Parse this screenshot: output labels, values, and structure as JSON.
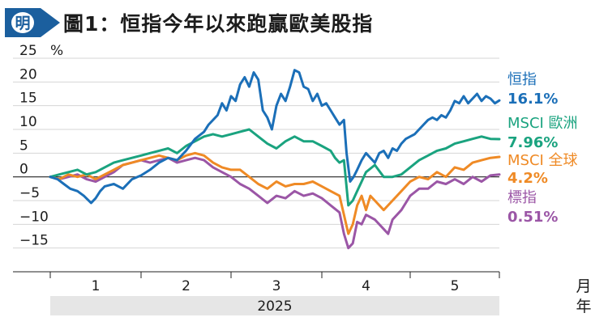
{
  "header": {
    "logo_text": "明",
    "title": "圖1：恒指今年以來跑贏歐美股指"
  },
  "chart_data": {
    "type": "line",
    "title": "圖1：恒指今年以來跑贏歐美股指",
    "y_unit": "%",
    "y_ticks": [
      "25",
      "20",
      "15",
      "10",
      "5",
      "0",
      "−5",
      "−10",
      "−15"
    ],
    "ylim": [
      -20,
      25
    ],
    "x_ticks": [
      "1",
      "2",
      "3",
      "4",
      "5"
    ],
    "x_unit_top": "月",
    "x_unit_bottom": "年",
    "year_label": "2025",
    "zero_line": true,
    "grid": true,
    "legend_position": "right",
    "series": [
      {
        "name": "恒指",
        "final_label": "16.1%",
        "color": "#1b6fb8",
        "points": [
          [
            0,
            0
          ],
          [
            0.08,
            -0.5
          ],
          [
            0.15,
            -1.5
          ],
          [
            0.22,
            -2.5
          ],
          [
            0.3,
            -3
          ],
          [
            0.37,
            -4
          ],
          [
            0.45,
            -5.5
          ],
          [
            0.5,
            -4.5
          ],
          [
            0.55,
            -3
          ],
          [
            0.6,
            -2
          ],
          [
            0.7,
            -1.5
          ],
          [
            0.8,
            -2.5
          ],
          [
            0.9,
            -0.5
          ],
          [
            1,
            0.3
          ],
          [
            1.1,
            1.5
          ],
          [
            1.2,
            3
          ],
          [
            1.3,
            4
          ],
          [
            1.4,
            3.5
          ],
          [
            1.5,
            5.5
          ],
          [
            1.6,
            8
          ],
          [
            1.7,
            9.5
          ],
          [
            1.75,
            11
          ],
          [
            1.85,
            13
          ],
          [
            1.9,
            15.5
          ],
          [
            1.95,
            14
          ],
          [
            2,
            17
          ],
          [
            2.05,
            16
          ],
          [
            2.1,
            19.5
          ],
          [
            2.15,
            21
          ],
          [
            2.2,
            19
          ],
          [
            2.25,
            22
          ],
          [
            2.3,
            20.5
          ],
          [
            2.35,
            14
          ],
          [
            2.4,
            12.5
          ],
          [
            2.45,
            10
          ],
          [
            2.5,
            15
          ],
          [
            2.55,
            17.5
          ],
          [
            2.6,
            16
          ],
          [
            2.65,
            19
          ],
          [
            2.7,
            22.5
          ],
          [
            2.75,
            22
          ],
          [
            2.8,
            19
          ],
          [
            2.85,
            18.5
          ],
          [
            2.9,
            16
          ],
          [
            2.95,
            17.5
          ],
          [
            3,
            15
          ],
          [
            3.05,
            15.5
          ],
          [
            3.1,
            14
          ],
          [
            3.15,
            12.5
          ],
          [
            3.2,
            11
          ],
          [
            3.25,
            12
          ],
          [
            3.28,
            5
          ],
          [
            3.32,
            -1
          ],
          [
            3.36,
            0
          ],
          [
            3.4,
            1.5
          ],
          [
            3.45,
            3.5
          ],
          [
            3.5,
            5
          ],
          [
            3.55,
            4
          ],
          [
            3.6,
            3
          ],
          [
            3.65,
            5
          ],
          [
            3.7,
            5.5
          ],
          [
            3.75,
            4
          ],
          [
            3.8,
            6
          ],
          [
            3.85,
            5.5
          ],
          [
            3.9,
            7
          ],
          [
            3.95,
            8
          ],
          [
            4,
            8.5
          ],
          [
            4.05,
            9
          ],
          [
            4.1,
            10
          ],
          [
            4.15,
            11
          ],
          [
            4.2,
            12
          ],
          [
            4.25,
            12.5
          ],
          [
            4.3,
            12
          ],
          [
            4.35,
            13
          ],
          [
            4.4,
            12.5
          ],
          [
            4.45,
            14
          ],
          [
            4.5,
            16
          ],
          [
            4.55,
            15.5
          ],
          [
            4.6,
            17
          ],
          [
            4.65,
            15.5
          ],
          [
            4.7,
            16.5
          ],
          [
            4.75,
            17.5
          ],
          [
            4.8,
            16
          ],
          [
            4.85,
            17
          ],
          [
            4.9,
            16.5
          ],
          [
            4.95,
            15.5
          ],
          [
            5,
            16.1
          ]
        ]
      },
      {
        "name": "MSCI 歐洲",
        "final_label": "7.96%",
        "color": "#1aa37f",
        "points": [
          [
            0,
            0
          ],
          [
            0.1,
            0.5
          ],
          [
            0.2,
            1
          ],
          [
            0.3,
            1.5
          ],
          [
            0.4,
            0.5
          ],
          [
            0.5,
            1
          ],
          [
            0.6,
            2
          ],
          [
            0.7,
            3
          ],
          [
            0.8,
            3.5
          ],
          [
            0.9,
            4
          ],
          [
            1,
            4.5
          ],
          [
            1.1,
            5
          ],
          [
            1.2,
            5.5
          ],
          [
            1.3,
            6
          ],
          [
            1.4,
            5
          ],
          [
            1.5,
            6.5
          ],
          [
            1.6,
            7.5
          ],
          [
            1.7,
            8.5
          ],
          [
            1.8,
            9
          ],
          [
            1.9,
            8.5
          ],
          [
            2,
            9
          ],
          [
            2.1,
            9.5
          ],
          [
            2.2,
            10
          ],
          [
            2.3,
            8.5
          ],
          [
            2.4,
            7
          ],
          [
            2.5,
            6
          ],
          [
            2.6,
            7.5
          ],
          [
            2.7,
            8.5
          ],
          [
            2.8,
            7.5
          ],
          [
            2.9,
            7.5
          ],
          [
            3,
            6.5
          ],
          [
            3.1,
            5.5
          ],
          [
            3.15,
            4
          ],
          [
            3.2,
            3
          ],
          [
            3.25,
            3.5
          ],
          [
            3.3,
            -6
          ],
          [
            3.35,
            -5
          ],
          [
            3.4,
            -3
          ],
          [
            3.45,
            -1
          ],
          [
            3.5,
            1
          ],
          [
            3.6,
            2.5
          ],
          [
            3.7,
            0
          ],
          [
            3.8,
            0
          ],
          [
            3.9,
            0.5
          ],
          [
            4,
            2
          ],
          [
            4.1,
            3.5
          ],
          [
            4.2,
            4.5
          ],
          [
            4.3,
            5.5
          ],
          [
            4.4,
            6
          ],
          [
            4.5,
            7
          ],
          [
            4.6,
            7.5
          ],
          [
            4.7,
            8
          ],
          [
            4.8,
            8.5
          ],
          [
            4.9,
            8
          ],
          [
            5,
            7.96
          ]
        ]
      },
      {
        "name": "MSCI 全球",
        "final_label": "4.2%",
        "color": "#ef8a25",
        "points": [
          [
            0,
            0
          ],
          [
            0.1,
            -0.5
          ],
          [
            0.2,
            0.5
          ],
          [
            0.3,
            0
          ],
          [
            0.4,
            0.5
          ],
          [
            0.5,
            -0.5
          ],
          [
            0.6,
            0.5
          ],
          [
            0.7,
            1.5
          ],
          [
            0.8,
            2.5
          ],
          [
            0.9,
            3
          ],
          [
            1,
            3.5
          ],
          [
            1.1,
            4
          ],
          [
            1.2,
            4.5
          ],
          [
            1.3,
            4
          ],
          [
            1.4,
            3.5
          ],
          [
            1.5,
            4.5
          ],
          [
            1.6,
            5
          ],
          [
            1.7,
            4.5
          ],
          [
            1.8,
            3
          ],
          [
            1.9,
            2
          ],
          [
            2,
            1.5
          ],
          [
            2.1,
            1.5
          ],
          [
            2.2,
            0
          ],
          [
            2.3,
            -1.5
          ],
          [
            2.4,
            -2.5
          ],
          [
            2.5,
            -1
          ],
          [
            2.6,
            -2
          ],
          [
            2.7,
            -1.5
          ],
          [
            2.8,
            -1.5
          ],
          [
            2.9,
            -1
          ],
          [
            3,
            -2
          ],
          [
            3.1,
            -3
          ],
          [
            3.2,
            -4
          ],
          [
            3.25,
            -8
          ],
          [
            3.3,
            -12
          ],
          [
            3.35,
            -10
          ],
          [
            3.4,
            -6
          ],
          [
            3.45,
            -4
          ],
          [
            3.5,
            -7
          ],
          [
            3.55,
            -4
          ],
          [
            3.6,
            -5
          ],
          [
            3.7,
            -7
          ],
          [
            3.8,
            -5
          ],
          [
            3.9,
            -3
          ],
          [
            4,
            -1
          ],
          [
            4.1,
            0
          ],
          [
            4.2,
            -0.5
          ],
          [
            4.3,
            1
          ],
          [
            4.4,
            0
          ],
          [
            4.5,
            2
          ],
          [
            4.6,
            1.5
          ],
          [
            4.7,
            3
          ],
          [
            4.8,
            3.5
          ],
          [
            4.9,
            4
          ],
          [
            5,
            4.2
          ]
        ]
      },
      {
        "name": "標指",
        "final_label": "0.51%",
        "color": "#9b56a6",
        "points": [
          [
            0,
            0
          ],
          [
            0.1,
            -0.5
          ],
          [
            0.2,
            0
          ],
          [
            0.3,
            0.5
          ],
          [
            0.4,
            -0.5
          ],
          [
            0.5,
            -1
          ],
          [
            0.6,
            0
          ],
          [
            0.7,
            1
          ],
          [
            0.8,
            2.5
          ],
          [
            0.9,
            3
          ],
          [
            1,
            3.5
          ],
          [
            1.1,
            3
          ],
          [
            1.2,
            3.5
          ],
          [
            1.3,
            4
          ],
          [
            1.4,
            3
          ],
          [
            1.5,
            3.5
          ],
          [
            1.6,
            4
          ],
          [
            1.7,
            3.5
          ],
          [
            1.8,
            2
          ],
          [
            1.9,
            1
          ],
          [
            2,
            0
          ],
          [
            2.1,
            -1.5
          ],
          [
            2.2,
            -2.5
          ],
          [
            2.3,
            -4
          ],
          [
            2.4,
            -5.5
          ],
          [
            2.5,
            -4
          ],
          [
            2.6,
            -4.5
          ],
          [
            2.7,
            -3
          ],
          [
            2.8,
            -4
          ],
          [
            2.9,
            -3.5
          ],
          [
            3,
            -4.5
          ],
          [
            3.1,
            -6
          ],
          [
            3.2,
            -7.5
          ],
          [
            3.25,
            -12
          ],
          [
            3.3,
            -15
          ],
          [
            3.35,
            -14
          ],
          [
            3.4,
            -9.5
          ],
          [
            3.45,
            -10
          ],
          [
            3.5,
            -8
          ],
          [
            3.6,
            -9
          ],
          [
            3.7,
            -11
          ],
          [
            3.75,
            -12
          ],
          [
            3.8,
            -9
          ],
          [
            3.9,
            -7
          ],
          [
            4,
            -4
          ],
          [
            4.1,
            -2.5
          ],
          [
            4.2,
            -2.5
          ],
          [
            4.3,
            -1
          ],
          [
            4.4,
            -1.5
          ],
          [
            4.5,
            -0.5
          ],
          [
            4.6,
            -1.5
          ],
          [
            4.7,
            0
          ],
          [
            4.8,
            -1
          ],
          [
            4.9,
            0.3
          ],
          [
            5,
            0.51
          ]
        ]
      }
    ]
  }
}
